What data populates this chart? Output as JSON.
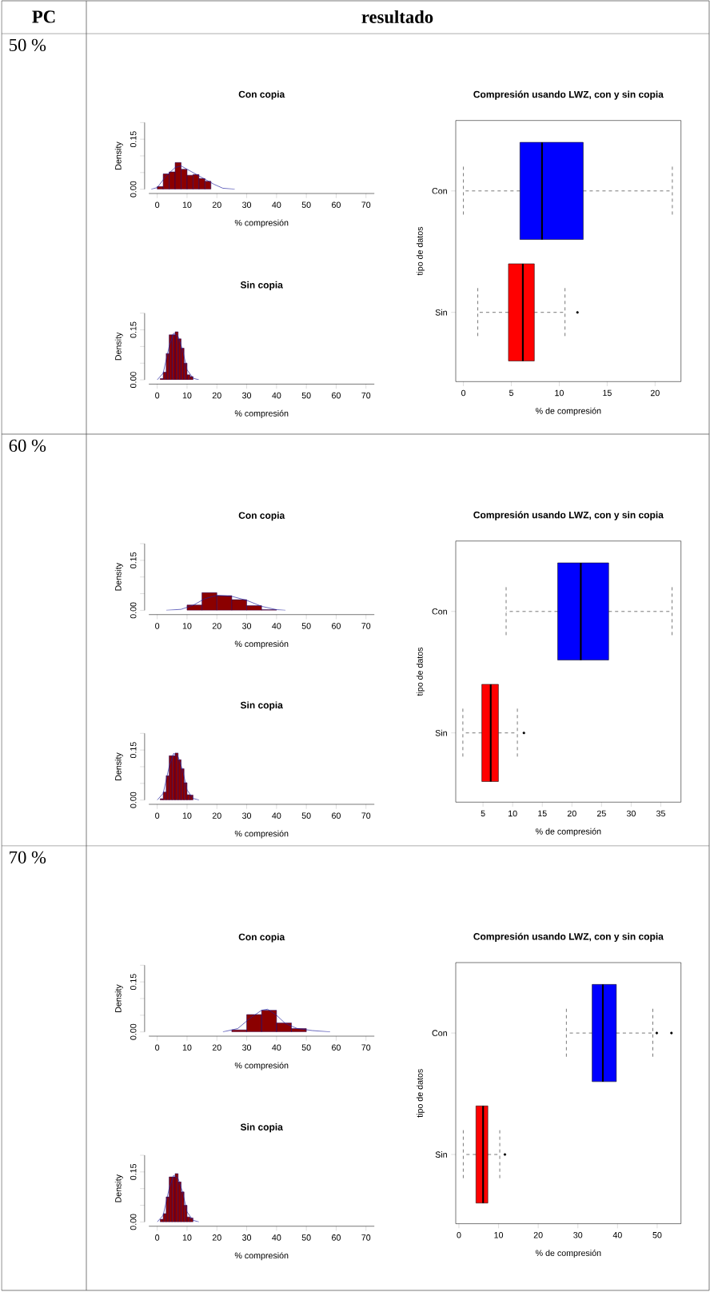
{
  "chart_data": [
    {
      "type": "histogram",
      "title": "Con copia",
      "xlabel": "% compresión",
      "ylabel": "Density",
      "annotations": [
        "PC",
        "resultado",
        "50 %"
      ],
      "xlim": [
        -2.8,
        72.8
      ],
      "ylim": [
        0,
        0.2
      ],
      "xticks": [
        0,
        10,
        20,
        30,
        40,
        50,
        60,
        70
      ],
      "yticks": [
        {
          "value": 0,
          "label": "0.00"
        },
        {
          "value": 0.05,
          "label": null
        },
        {
          "value": 0.1,
          "label": null
        },
        {
          "value": 0.15,
          "label": "0.15"
        },
        {
          "value": 0.2,
          "label": null
        }
      ],
      "series": [
        {
          "type": "histogram",
          "color": "#8b0000",
          "bins": [
            0,
            2,
            4,
            6,
            8,
            10,
            12,
            14,
            16,
            18
          ],
          "values": [
            0.008,
            0.046,
            0.052,
            0.08,
            0.06,
            0.042,
            0.044,
            0.032,
            0.024
          ]
        },
        {
          "type": "line",
          "color": "#2020a0",
          "x": [
            -2,
            0,
            3,
            6,
            8,
            10,
            13,
            16,
            19,
            22,
            26
          ],
          "values": [
            0,
            0.005,
            0.04,
            0.065,
            0.07,
            0.06,
            0.045,
            0.03,
            0.015,
            0.003,
            0
          ]
        }
      ]
    },
    {
      "type": "box",
      "orientation": "horizontal",
      "title": "Compresión usando LWZ, con y sin copia",
      "xlabel": "% de compresión",
      "ylabel": "tipo de datos",
      "categories": [
        "Con",
        "Sin"
      ],
      "colors": [
        "#0000ff",
        "#ff0000"
      ],
      "xlim": [
        -0.8,
        22.7
      ],
      "xticks": [
        0,
        5,
        10,
        15,
        20
      ],
      "boxes": [
        {
          "low": 0,
          "q1": 5.9,
          "median": 8.2,
          "q3": 12.5,
          "high": 21.8
        },
        {
          "low": 1.5,
          "q1": 4.7,
          "median": 6.2,
          "q3": 7.4,
          "high": 10.6,
          "outliers": [
            11.9
          ]
        }
      ]
    },
    {
      "type": "histogram",
      "title": "Sin copia",
      "xlabel": "% compresión",
      "ylabel": "Density",
      "xlim": [
        -2.8,
        72.8
      ],
      "ylim": [
        0,
        0.2
      ],
      "xticks": [
        0,
        10,
        20,
        30,
        40,
        50,
        60,
        70
      ],
      "yticks": [
        {
          "value": 0,
          "label": "0.00"
        },
        {
          "value": 0.05,
          "label": null
        },
        {
          "value": 0.1,
          "label": null
        },
        {
          "value": 0.15,
          "label": "0.15"
        },
        {
          "value": 0.2,
          "label": null
        }
      ],
      "series": [
        {
          "type": "histogram",
          "color": "#8b0000",
          "bins": [
            1,
            2,
            3,
            4,
            5,
            6,
            7,
            8,
            9,
            10,
            11,
            12
          ],
          "values": [
            0.004,
            0.023,
            0.079,
            0.135,
            0.135,
            0.144,
            0.123,
            0.095,
            0.05,
            0.015,
            0.01
          ]
        },
        {
          "type": "line",
          "color": "#2020a0",
          "x": [
            0,
            2,
            4,
            5.5,
            7,
            8.5,
            10,
            12,
            14
          ],
          "values": [
            0,
            0.02,
            0.1,
            0.14,
            0.13,
            0.09,
            0.03,
            0.005,
            0
          ]
        }
      ]
    },
    {
      "type": "histogram",
      "title": "Con copia",
      "xlabel": "% compresión",
      "ylabel": "Density",
      "annotations": [
        "60 %"
      ],
      "xlim": [
        -2.8,
        72.8
      ],
      "ylim": [
        0,
        0.2
      ],
      "xticks": [
        0,
        10,
        20,
        30,
        40,
        50,
        60,
        70
      ],
      "yticks": [
        {
          "value": 0,
          "label": "0.00"
        },
        {
          "value": 0.05,
          "label": null
        },
        {
          "value": 0.1,
          "label": null
        },
        {
          "value": 0.15,
          "label": "0.15"
        },
        {
          "value": 0.2,
          "label": null
        }
      ],
      "series": [
        {
          "type": "histogram",
          "color": "#8b0000",
          "bins": [
            10,
            15,
            20,
            25,
            30,
            35,
            40
          ],
          "values": [
            0.016,
            0.053,
            0.044,
            0.032,
            0.014,
            0.002
          ]
        },
        {
          "type": "line",
          "color": "#2020a0",
          "x": [
            3,
            8,
            12,
            16,
            20,
            25,
            30,
            35,
            40,
            43
          ],
          "values": [
            0,
            0.003,
            0.015,
            0.035,
            0.045,
            0.042,
            0.03,
            0.012,
            0.002,
            0
          ]
        }
      ]
    },
    {
      "type": "box",
      "orientation": "horizontal",
      "title": "Compresión usando LWZ, con y sin copia",
      "xlabel": "% de compresión",
      "ylabel": "tipo de datos",
      "categories": [
        "Con",
        "Sin"
      ],
      "colors": [
        "#0000ff",
        "#ff0000"
      ],
      "xlim": [
        0.4,
        38.4
      ],
      "xticks": [
        5,
        10,
        15,
        20,
        25,
        30,
        35
      ],
      "boxes": [
        {
          "low": 8.9,
          "q1": 17.6,
          "median": 21.5,
          "q3": 26.2,
          "high": 36.9
        },
        {
          "low": 1.6,
          "q1": 4.8,
          "median": 6.3,
          "q3": 7.6,
          "high": 10.8,
          "outliers": [
            11.9
          ]
        }
      ]
    },
    {
      "type": "histogram",
      "title": "Sin copia",
      "xlabel": "% compresión",
      "ylabel": "Density",
      "xlim": [
        -2.8,
        72.8
      ],
      "ylim": [
        0,
        0.2
      ],
      "xticks": [
        0,
        10,
        20,
        30,
        40,
        50,
        60,
        70
      ],
      "yticks": [
        {
          "value": 0,
          "label": "0.00"
        },
        {
          "value": 0.05,
          "label": null
        },
        {
          "value": 0.1,
          "label": null
        },
        {
          "value": 0.15,
          "label": "0.15"
        },
        {
          "value": 0.2,
          "label": null
        }
      ],
      "series": [
        {
          "type": "histogram",
          "color": "#8b0000",
          "bins": [
            1,
            2,
            3,
            4,
            5,
            6,
            7,
            8,
            9,
            10,
            11,
            12
          ],
          "values": [
            0.004,
            0.024,
            0.073,
            0.133,
            0.133,
            0.141,
            0.121,
            0.094,
            0.052,
            0.016,
            0.015
          ]
        },
        {
          "type": "line",
          "color": "#2020a0",
          "x": [
            0,
            2,
            4,
            5.5,
            7,
            8.5,
            10,
            12,
            14
          ],
          "values": [
            0,
            0.02,
            0.1,
            0.14,
            0.13,
            0.09,
            0.03,
            0.005,
            0
          ]
        }
      ]
    },
    {
      "type": "histogram",
      "title": "Con copia",
      "xlabel": "% compresión",
      "ylabel": "Density",
      "annotations": [
        "70 %"
      ],
      "xlim": [
        -2.8,
        72.8
      ],
      "ylim": [
        0,
        0.2
      ],
      "xticks": [
        0,
        10,
        20,
        30,
        40,
        50,
        60,
        70
      ],
      "yticks": [
        {
          "value": 0,
          "label": "0.00"
        },
        {
          "value": 0.05,
          "label": null
        },
        {
          "value": 0.1,
          "label": null
        },
        {
          "value": 0.15,
          "label": "0.15"
        },
        {
          "value": 0.2,
          "label": null
        }
      ],
      "series": [
        {
          "type": "histogram",
          "color": "#8b0000",
          "bins": [
            25,
            30,
            35,
            40,
            45,
            50
          ],
          "values": [
            0.006,
            0.052,
            0.065,
            0.027,
            0.01
          ]
        },
        {
          "type": "line",
          "color": "#2020a0",
          "x": [
            22,
            27,
            31,
            35,
            37,
            40,
            43,
            47,
            52,
            58
          ],
          "values": [
            0,
            0.01,
            0.04,
            0.065,
            0.068,
            0.05,
            0.025,
            0.01,
            0.004,
            0
          ]
        }
      ]
    },
    {
      "type": "box",
      "orientation": "horizontal",
      "title": "Compresión usando LWZ, con y sin copia",
      "xlabel": "% de compresión",
      "ylabel": "tipo de datos",
      "categories": [
        "Con",
        "Sin"
      ],
      "colors": [
        "#0000ff",
        "#ff0000"
      ],
      "xlim": [
        -0.8,
        56
      ],
      "xticks": [
        0,
        10,
        20,
        30,
        40,
        50
      ],
      "boxes": [
        {
          "low": 27.1,
          "q1": 33.6,
          "median": 36.3,
          "q3": 39.7,
          "high": 48.9,
          "outliers": [
            49.9,
            53.6
          ]
        },
        {
          "low": 1.1,
          "q1": 4.3,
          "median": 6.1,
          "q3": 7.3,
          "high": 10.3,
          "outliers": [
            11.6
          ]
        }
      ]
    },
    {
      "type": "histogram",
      "title": "Sin copia",
      "xlabel": "% compresión",
      "ylabel": "Density",
      "xlim": [
        -2.8,
        72.8
      ],
      "ylim": [
        0,
        0.2
      ],
      "xticks": [
        0,
        10,
        20,
        30,
        40,
        50,
        60,
        70
      ],
      "yticks": [
        {
          "value": 0,
          "label": "0.00"
        },
        {
          "value": 0.05,
          "label": null
        },
        {
          "value": 0.1,
          "label": null
        },
        {
          "value": 0.15,
          "label": "0.15"
        },
        {
          "value": 0.2,
          "label": null
        }
      ],
      "series": [
        {
          "type": "histogram",
          "color": "#8b0000",
          "bins": [
            1,
            2,
            3,
            4,
            5,
            6,
            7,
            8,
            9,
            10,
            11,
            12
          ],
          "values": [
            0.008,
            0.025,
            0.075,
            0.135,
            0.135,
            0.145,
            0.12,
            0.09,
            0.05,
            0.015,
            0.012
          ]
        },
        {
          "type": "line",
          "color": "#2020a0",
          "x": [
            0,
            2,
            4,
            5.5,
            7,
            8.5,
            10,
            12,
            14
          ],
          "values": [
            0,
            0.02,
            0.1,
            0.14,
            0.13,
            0.09,
            0.03,
            0.005,
            0
          ]
        }
      ]
    }
  ]
}
